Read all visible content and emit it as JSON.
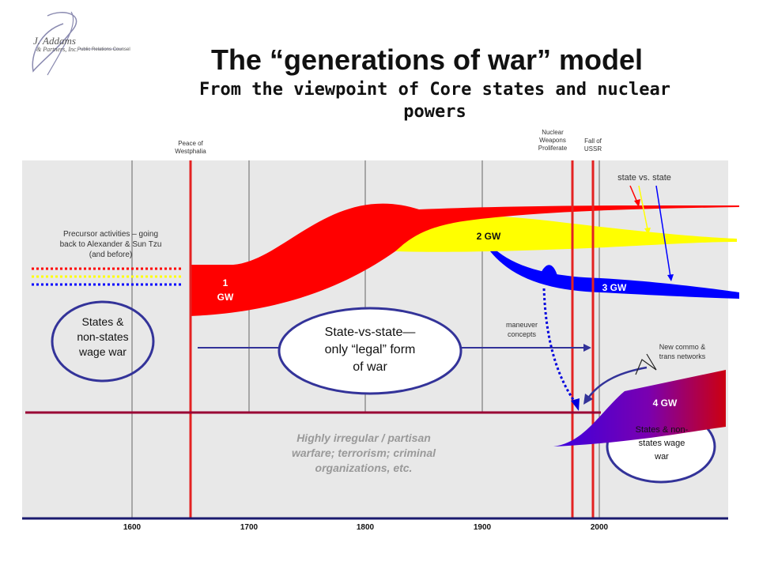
{
  "header": {
    "title": "The “generations of war” model",
    "subtitle": "From the viewpoint of Core states and nuclear powers"
  },
  "logo": {
    "name": "J. Addams",
    "sub": "& Partners, Inc.",
    "council": "Public Relations Counsel"
  },
  "events": {
    "westphalia": [
      "Peace of",
      "Westphalia"
    ],
    "nuclear": [
      "Nuclear",
      "Weapons",
      "Proliferate"
    ],
    "ussr": [
      "Fall of",
      "USSR"
    ]
  },
  "labels": {
    "state_vs_state": "state vs. state",
    "precursor": [
      "Precursor activities – going",
      "back to Alexander & Sun Tzu",
      "(and before)"
    ],
    "maneuver": [
      "maneuver",
      "concepts"
    ],
    "commo": [
      "New commo &",
      "trans networks"
    ]
  },
  "generations": {
    "gw1": [
      "1",
      "GW"
    ],
    "gw2": "2 GW",
    "gw3": "3 GW",
    "gw4": "4 GW"
  },
  "ovals": {
    "left": [
      "States &",
      "non-states",
      "wage war"
    ],
    "center": [
      "State-vs-state—",
      "only “legal” form",
      "of war"
    ],
    "right": [
      "States & non-",
      "states wage",
      "war"
    ]
  },
  "irregular": [
    "Highly irregular / partisan",
    "warfare; terrorism; criminal",
    "organizations, etc."
  ],
  "axis": {
    "ticks": [
      "1600",
      "1700",
      "1800",
      "1900",
      "2000"
    ]
  },
  "colors": {
    "gw1": "#ff0000",
    "gw2": "#ffff00",
    "gw3": "#0000ff",
    "gw4_start": "#0000ff",
    "gw4_end": "#cc0000",
    "panel": "#e8e8e8",
    "oval_border": "#333399",
    "event_line": "#e32222",
    "divider": "#990033"
  }
}
